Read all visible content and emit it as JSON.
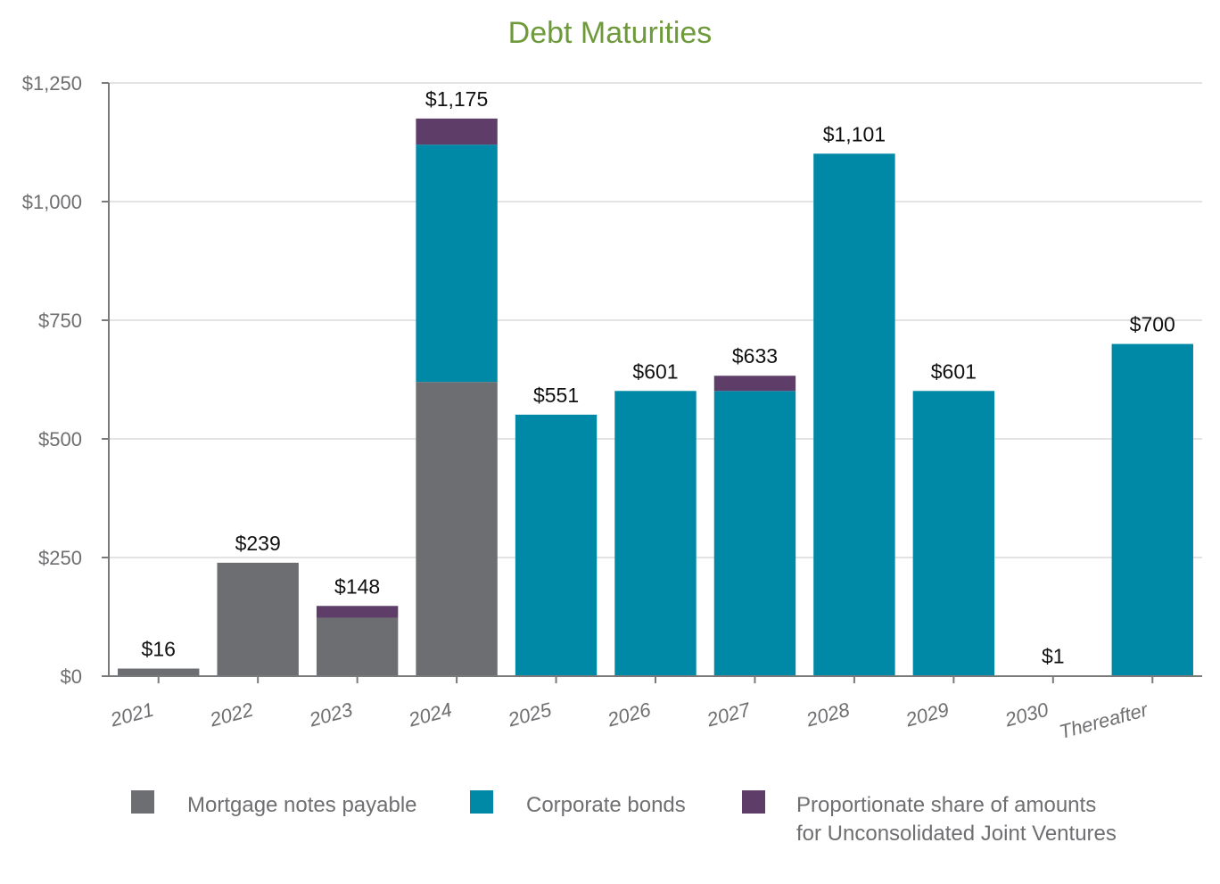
{
  "chart_data": {
    "type": "bar",
    "stacked": true,
    "title": "Debt Maturities",
    "xlabel": "",
    "ylabel": "",
    "ylim": [
      0,
      1250
    ],
    "yticks": [
      0,
      250,
      500,
      750,
      1000,
      1250
    ],
    "ytick_labels": [
      "$0",
      "$250",
      "$500",
      "$750",
      "$1,000",
      "$1,250"
    ],
    "grid": true,
    "categories": [
      "2021",
      "2022",
      "2023",
      "2024",
      "2025",
      "2026",
      "2027",
      "2028",
      "2029",
      "2030",
      "Thereafter"
    ],
    "series": [
      {
        "name": "Mortgage notes payable",
        "color": "#6d6e71",
        "values": [
          16,
          239,
          123,
          620,
          0,
          0,
          0,
          0,
          0,
          0,
          0
        ]
      },
      {
        "name": "Corporate bonds",
        "color": "#0089a6",
        "values": [
          0,
          0,
          0,
          500,
          551,
          601,
          601,
          1101,
          601,
          0,
          700
        ]
      },
      {
        "name": "Proportionate share of amounts for Unconsolidated Joint Ventures",
        "color": "#5e3d68",
        "values": [
          0,
          0,
          25,
          55,
          0,
          0,
          32,
          0,
          0,
          1,
          0
        ]
      }
    ],
    "totals": [
      "$16",
      "$239",
      "$148",
      "$1,175",
      "$551",
      "$601",
      "$633",
      "$1,101",
      "$601",
      "$1",
      "$700"
    ],
    "legend": {
      "position": "bottom",
      "items": [
        {
          "lines": [
            "Mortgage notes payable"
          ],
          "color": "#6d6e71"
        },
        {
          "lines": [
            "Corporate bonds"
          ],
          "color": "#0089a6"
        },
        {
          "lines": [
            "Proportionate share of amounts",
            "for Unconsolidated Joint Ventures"
          ],
          "color": "#5e3d68"
        }
      ]
    }
  }
}
